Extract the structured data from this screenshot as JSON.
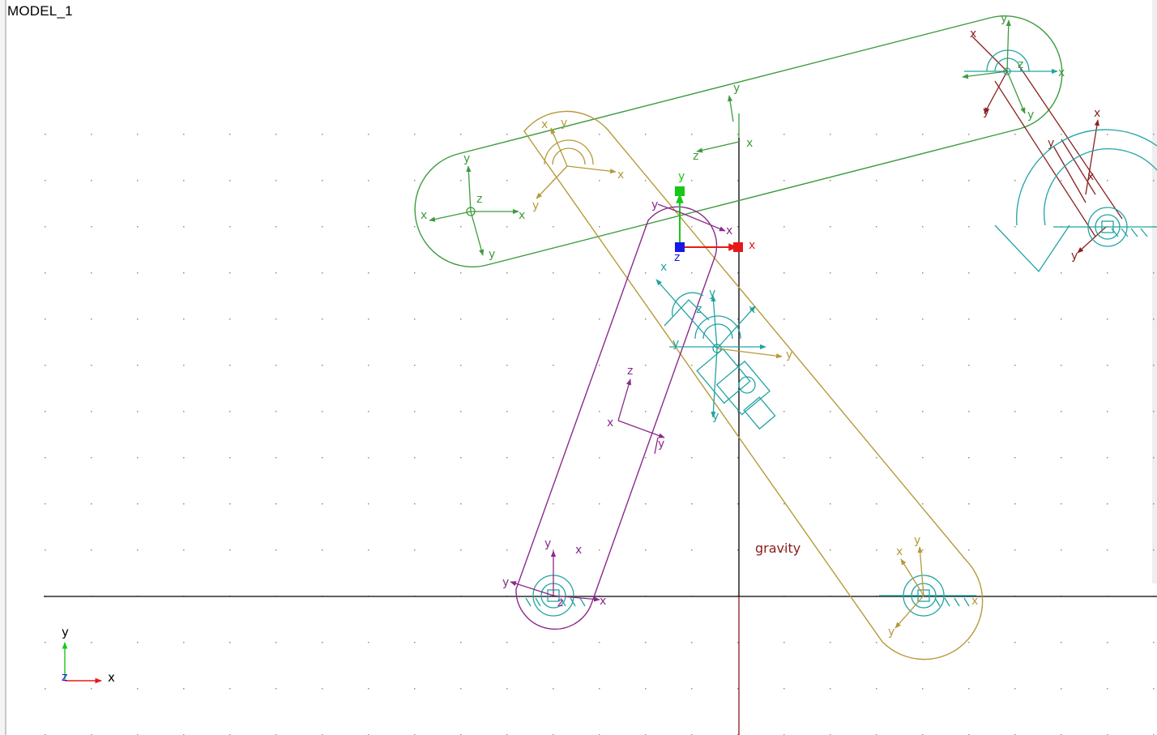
{
  "window": {
    "model_name": "MODEL_1"
  },
  "labels": {
    "gravity": "gravity",
    "x": "x",
    "y": "y",
    "z": "z"
  },
  "colors": {
    "background": "#ffffff",
    "grid_dot": "#909090",
    "axis_line": "#000000",
    "gravity_line": "#8b1a1a",
    "link_green": "#3d9b3d",
    "link_olive": "#b59a3a",
    "link_purple": "#8b2a8b",
    "link_maroon": "#8b2020",
    "joint_cyan": "#22a3a3",
    "triad_x": "#e81818",
    "triad_y": "#18c818",
    "triad_z": "#1818e8"
  },
  "icons": {
    "global_triad": "xyz-axes-icon",
    "ground_marker": "ground-hatch-icon",
    "revolute_joint": "revolute-joint-icon",
    "motion": "rotational-motion-arrow-icon",
    "working_grid": "grid-dot-icon"
  }
}
